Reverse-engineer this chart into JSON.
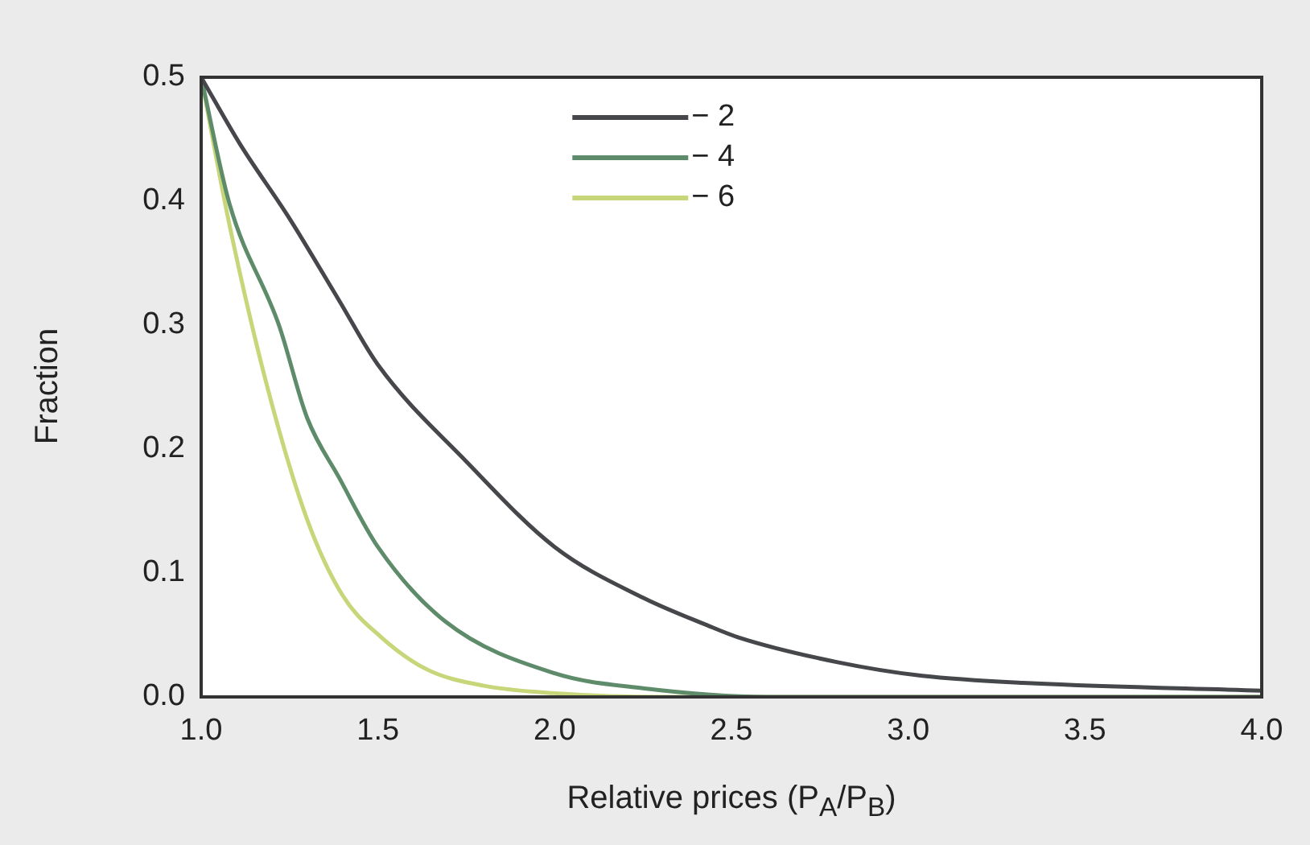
{
  "chart_data": {
    "type": "line",
    "xlabel": "Relative prices (P$_{A}$/P$_{B}$)",
    "ylabel": "Fraction",
    "xlim": [
      1.0,
      4.0
    ],
    "xticks": [
      {
        "value": 1.0,
        "label": "1.0"
      },
      {
        "value": 1.5,
        "label": "1.5"
      },
      {
        "value": 2.0,
        "label": "2.0"
      },
      {
        "value": 2.5,
        "label": "2.5"
      },
      {
        "value": 3.0,
        "label": "3.0"
      },
      {
        "value": 3.5,
        "label": "3.5"
      },
      {
        "value": 4.0,
        "label": "4.0"
      }
    ],
    "ylim": [
      0,
      0.5
    ],
    "yticks": [
      {
        "value": 0,
        "label": "0.0"
      },
      0.1,
      0.2,
      0.3,
      0.4,
      0.5
    ],
    "legend": "top",
    "grid": false,
    "marker": "none",
    "line_style": "solid",
    "series": [
      {
        "name": "− 2",
        "color": "#45474a",
        "x": [
          1.0,
          1.11,
          1.25,
          1.39,
          1.5,
          1.75,
          2.0,
          2.25,
          2.43,
          2.52,
          2.8,
          3.04,
          3.35,
          4.0
        ],
        "values": [
          0.5,
          0.446,
          0.386,
          0.32,
          0.268,
          0.19,
          0.121,
          0.08,
          0.058,
          0.048,
          0.028,
          0.017,
          0.011,
          0.005
        ]
      },
      {
        "name": "− 4",
        "color": "#5e8c6a",
        "x": [
          1.0,
          1.08,
          1.22,
          1.3,
          1.39,
          1.5,
          1.69,
          2.0,
          2.25,
          2.6,
          4.0
        ],
        "values": [
          0.5,
          0.398,
          0.3,
          0.225,
          0.177,
          0.121,
          0.061,
          0.019,
          0.007,
          0.0,
          0.0
        ]
      },
      {
        "name": "− 6",
        "color": "#c8d67a",
        "x": [
          1.0,
          1.08,
          1.19,
          1.3,
          1.4,
          1.51,
          1.64,
          1.8,
          2.0,
          2.3,
          4.0
        ],
        "values": [
          0.5,
          0.381,
          0.247,
          0.143,
          0.082,
          0.048,
          0.022,
          0.009,
          0.003,
          0.0,
          0.0
        ]
      }
    ]
  }
}
